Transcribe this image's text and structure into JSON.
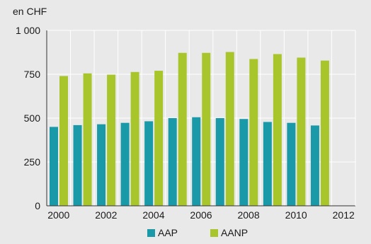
{
  "chart_data": {
    "type": "bar",
    "unit_label": "en CHF",
    "categories": [
      "2000",
      "2001",
      "2002",
      "2003",
      "2004",
      "2005",
      "2006",
      "2007",
      "2008",
      "2009",
      "2010",
      "2011",
      "2012"
    ],
    "x_tick_labels": [
      "2000",
      "2002",
      "2004",
      "2006",
      "2008",
      "2010",
      "2012"
    ],
    "y_tick_labels": [
      "0",
      "250",
      "500",
      "750",
      "1 000"
    ],
    "y_ticks": [
      0,
      250,
      500,
      750,
      1000
    ],
    "ylim": [
      0,
      1000
    ],
    "grid": true,
    "legend_position": "bottom",
    "series": [
      {
        "name": "AAP",
        "color": "#1a9aa8",
        "values": [
          450,
          460,
          465,
          473,
          482,
          500,
          505,
          500,
          495,
          478,
          473,
          458,
          null
        ]
      },
      {
        "name": "AANP",
        "color": "#a8c62c",
        "values": [
          740,
          755,
          748,
          763,
          770,
          872,
          872,
          877,
          837,
          865,
          845,
          828,
          null
        ]
      }
    ]
  }
}
